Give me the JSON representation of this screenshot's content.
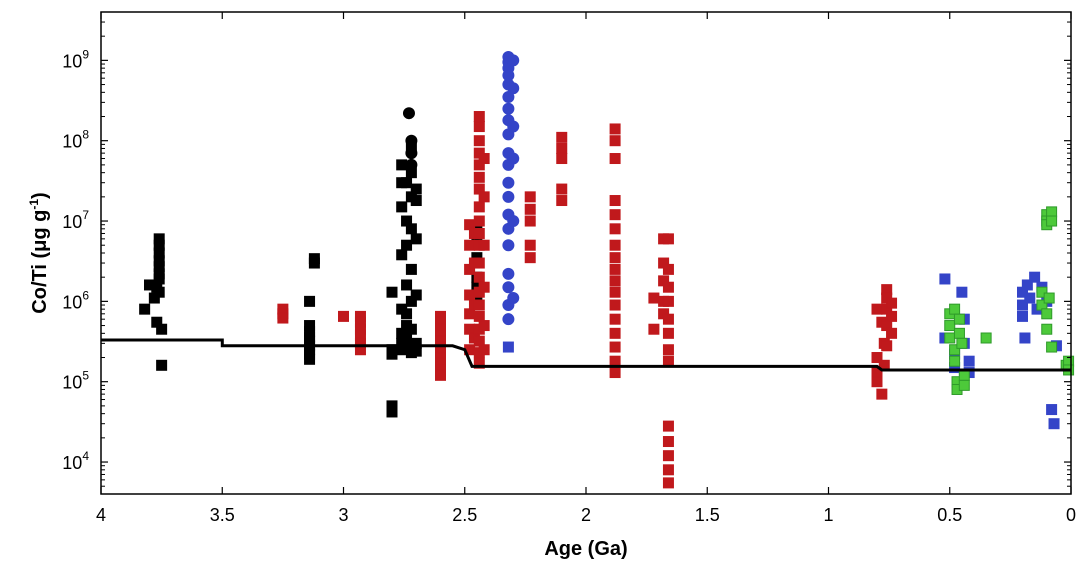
{
  "chart_data": {
    "type": "scatter",
    "xlabel": "Age (Ga)",
    "ylabel_base": "Co/Ti (μg g",
    "ylabel_sup": "-1",
    "ylabel_close": ")",
    "x_reversed": true,
    "xlim": [
      4,
      0
    ],
    "ylim": [
      4000,
      4000000000
    ],
    "y_scale": "log",
    "grid": false,
    "x_ticks": [
      4,
      3.5,
      3,
      2.5,
      2,
      1.5,
      1,
      0.5,
      0
    ],
    "x_tick_labels": [
      "4",
      "3.5",
      "3",
      "2.5",
      "2",
      "1.5",
      "1",
      "0.5",
      "0"
    ],
    "y_ticks": [
      10000,
      100000,
      1000000,
      10000000,
      100000000,
      1000000000
    ],
    "y_tick_base": "10",
    "y_tick_exponents": [
      "4",
      "5",
      "6",
      "7",
      "8",
      "9"
    ],
    "colors": {
      "black": "#000000",
      "red": "#c0191c",
      "blue": "#3444c8",
      "green": "#4dc93a",
      "green_edge": "#2f9a2a"
    },
    "series": [
      {
        "color": "black",
        "marker": "square",
        "points": [
          [
            3.8,
            1600000
          ],
          [
            3.82,
            800000
          ],
          [
            3.78,
            1100000
          ],
          [
            3.76,
            6000000
          ],
          [
            3.76,
            5000000
          ],
          [
            3.76,
            4000000
          ],
          [
            3.76,
            3200000
          ],
          [
            3.76,
            2700000
          ],
          [
            3.76,
            2200000
          ],
          [
            3.76,
            1900000
          ],
          [
            3.77,
            1500000
          ],
          [
            3.76,
            1300000
          ],
          [
            3.77,
            550000
          ],
          [
            3.75,
            450000
          ],
          [
            3.75,
            160000
          ],
          [
            3.14,
            1000000
          ],
          [
            3.14,
            500000
          ],
          [
            3.14,
            420000
          ],
          [
            3.14,
            360000
          ],
          [
            3.14,
            320000
          ],
          [
            3.14,
            280000
          ],
          [
            3.14,
            250000
          ],
          [
            3.14,
            220000
          ],
          [
            3.14,
            190000
          ],
          [
            3.12,
            3400000
          ],
          [
            3.12,
            3000000
          ],
          [
            2.8,
            1300000
          ],
          [
            2.8,
            250000
          ],
          [
            2.8,
            220000
          ],
          [
            2.8,
            50000
          ],
          [
            2.8,
            42000
          ],
          [
            2.76,
            50000000
          ],
          [
            2.76,
            30000000
          ],
          [
            2.76,
            15000000
          ],
          [
            2.76,
            3800000
          ],
          [
            2.76,
            800000
          ],
          [
            2.76,
            400000
          ],
          [
            2.76,
            300000
          ],
          [
            2.76,
            250000
          ],
          [
            2.74,
            30000000
          ],
          [
            2.74,
            10000000
          ],
          [
            2.74,
            5000000
          ],
          [
            2.74,
            1600000
          ],
          [
            2.74,
            700000
          ],
          [
            2.74,
            500000
          ],
          [
            2.74,
            350000
          ],
          [
            2.72,
            80000000
          ],
          [
            2.72,
            40000000
          ],
          [
            2.72,
            20000000
          ],
          [
            2.72,
            8000000
          ],
          [
            2.72,
            2500000
          ],
          [
            2.72,
            1000000
          ],
          [
            2.72,
            450000
          ],
          [
            2.72,
            260000
          ],
          [
            2.72,
            230000
          ],
          [
            2.7,
            25000000
          ],
          [
            2.7,
            6000000
          ],
          [
            2.7,
            1200000
          ],
          [
            2.7,
            300000
          ],
          [
            2.7,
            240000
          ],
          [
            2.7,
            18000000
          ],
          [
            2.45,
            7500000
          ],
          [
            2.45,
            6500000
          ],
          [
            2.45,
            3500000
          ],
          [
            2.45,
            2000000
          ],
          [
            2.45,
            1500000
          ],
          [
            2.45,
            1000000
          ]
        ]
      },
      {
        "color": "black",
        "marker": "circle",
        "points": [
          [
            2.73,
            220000000
          ],
          [
            2.72,
            100000000
          ],
          [
            2.72,
            70000000
          ],
          [
            2.72,
            50000000
          ]
        ]
      },
      {
        "color": "red",
        "marker": "square",
        "points": [
          [
            3.25,
            800000
          ],
          [
            3.25,
            700000
          ],
          [
            3.25,
            620000
          ],
          [
            3.0,
            650000
          ],
          [
            2.93,
            650000
          ],
          [
            2.93,
            550000
          ],
          [
            2.93,
            450000
          ],
          [
            2.93,
            380000
          ],
          [
            2.93,
            300000
          ],
          [
            2.93,
            250000
          ],
          [
            2.6,
            650000
          ],
          [
            2.6,
            550000
          ],
          [
            2.6,
            450000
          ],
          [
            2.6,
            380000
          ],
          [
            2.6,
            320000
          ],
          [
            2.6,
            270000
          ],
          [
            2.6,
            230000
          ],
          [
            2.6,
            200000
          ],
          [
            2.6,
            170000
          ],
          [
            2.6,
            140000
          ],
          [
            2.6,
            120000
          ],
          [
            2.48,
            9000000
          ],
          [
            2.48,
            5000000
          ],
          [
            2.48,
            2500000
          ],
          [
            2.48,
            1200000
          ],
          [
            2.48,
            700000
          ],
          [
            2.48,
            450000
          ],
          [
            2.48,
            250000
          ],
          [
            2.46,
            7000000
          ],
          [
            2.46,
            3000000
          ],
          [
            2.46,
            900000
          ],
          [
            2.46,
            350000
          ],
          [
            2.44,
            200000000
          ],
          [
            2.44,
            150000000
          ],
          [
            2.44,
            100000000
          ],
          [
            2.44,
            70000000
          ],
          [
            2.44,
            50000000
          ],
          [
            2.44,
            35000000
          ],
          [
            2.44,
            25000000
          ],
          [
            2.44,
            15000000
          ],
          [
            2.44,
            10000000
          ],
          [
            2.44,
            7000000
          ],
          [
            2.44,
            5000000
          ],
          [
            2.44,
            3000000
          ],
          [
            2.44,
            2000000
          ],
          [
            2.44,
            1300000
          ],
          [
            2.44,
            900000
          ],
          [
            2.44,
            650000
          ],
          [
            2.44,
            450000
          ],
          [
            2.44,
            320000
          ],
          [
            2.44,
            230000
          ],
          [
            2.44,
            170000
          ],
          [
            2.42,
            60000000
          ],
          [
            2.42,
            20000000
          ],
          [
            2.42,
            5000000
          ],
          [
            2.42,
            1500000
          ],
          [
            2.42,
            500000
          ],
          [
            2.42,
            250000
          ],
          [
            2.23,
            20000000
          ],
          [
            2.23,
            14000000
          ],
          [
            2.23,
            10000000
          ],
          [
            2.23,
            5000000
          ],
          [
            2.23,
            3500000
          ],
          [
            2.1,
            110000000
          ],
          [
            2.1,
            80000000
          ],
          [
            2.1,
            60000000
          ],
          [
            2.1,
            25000000
          ],
          [
            2.1,
            18000000
          ],
          [
            1.88,
            140000000
          ],
          [
            1.88,
            100000000
          ],
          [
            1.88,
            60000000
          ],
          [
            1.88,
            18000000
          ],
          [
            1.88,
            12000000
          ],
          [
            1.88,
            8000000
          ],
          [
            1.88,
            5000000
          ],
          [
            1.88,
            3500000
          ],
          [
            1.88,
            2500000
          ],
          [
            1.88,
            1800000
          ],
          [
            1.88,
            1300000
          ],
          [
            1.88,
            900000
          ],
          [
            1.88,
            600000
          ],
          [
            1.88,
            400000
          ],
          [
            1.88,
            270000
          ],
          [
            1.88,
            180000
          ],
          [
            1.88,
            130000
          ],
          [
            1.72,
            1100000
          ],
          [
            1.72,
            450000
          ],
          [
            1.68,
            6000000
          ],
          [
            1.68,
            3000000
          ],
          [
            1.68,
            1800000
          ],
          [
            1.68,
            1000000
          ],
          [
            1.68,
            700000
          ],
          [
            1.66,
            6000000
          ],
          [
            1.66,
            2500000
          ],
          [
            1.66,
            1500000
          ],
          [
            1.66,
            1000000
          ],
          [
            1.66,
            600000
          ],
          [
            1.66,
            400000
          ],
          [
            1.66,
            250000
          ],
          [
            1.66,
            180000
          ],
          [
            1.66,
            28000
          ],
          [
            1.66,
            18000
          ],
          [
            1.66,
            12000
          ],
          [
            1.66,
            8000
          ],
          [
            1.66,
            5500
          ],
          [
            0.8,
            800000
          ],
          [
            0.8,
            200000
          ],
          [
            0.8,
            130000
          ],
          [
            0.8,
            100000
          ],
          [
            0.78,
            550000
          ],
          [
            0.78,
            70000
          ],
          [
            0.77,
            300000
          ],
          [
            0.77,
            160000
          ],
          [
            0.76,
            1400000
          ],
          [
            0.76,
            1100000
          ],
          [
            0.76,
            800000
          ],
          [
            0.76,
            500000
          ],
          [
            0.76,
            280000
          ],
          [
            0.74,
            950000
          ],
          [
            0.74,
            650000
          ],
          [
            0.74,
            400000
          ]
        ]
      },
      {
        "color": "blue",
        "marker": "circle",
        "points": [
          [
            2.32,
            1100000000
          ],
          [
            2.32,
            950000000
          ],
          [
            2.32,
            800000000
          ],
          [
            2.32,
            650000000
          ],
          [
            2.32,
            500000000
          ],
          [
            2.32,
            350000000
          ],
          [
            2.32,
            250000000
          ],
          [
            2.32,
            180000000
          ],
          [
            2.32,
            120000000
          ],
          [
            2.32,
            70000000
          ],
          [
            2.32,
            50000000
          ],
          [
            2.32,
            30000000
          ],
          [
            2.32,
            20000000
          ],
          [
            2.32,
            12000000
          ],
          [
            2.32,
            8000000
          ],
          [
            2.32,
            5000000
          ],
          [
            2.32,
            2200000
          ],
          [
            2.32,
            1500000
          ],
          [
            2.32,
            900000
          ],
          [
            2.32,
            600000
          ],
          [
            2.3,
            1000000000
          ],
          [
            2.3,
            450000000
          ],
          [
            2.3,
            150000000
          ],
          [
            2.3,
            60000000
          ],
          [
            2.3,
            10000000
          ],
          [
            2.3,
            1100000
          ]
        ]
      },
      {
        "color": "blue",
        "marker": "square",
        "points": [
          [
            2.32,
            270000
          ],
          [
            0.52,
            1900000
          ],
          [
            0.52,
            350000
          ],
          [
            0.48,
            220000
          ],
          [
            0.48,
            150000
          ],
          [
            0.45,
            1300000
          ],
          [
            0.44,
            600000
          ],
          [
            0.44,
            300000
          ],
          [
            0.42,
            180000
          ],
          [
            0.42,
            130000
          ],
          [
            0.2,
            1300000
          ],
          [
            0.2,
            900000
          ],
          [
            0.2,
            650000
          ],
          [
            0.19,
            350000
          ],
          [
            0.18,
            1600000
          ],
          [
            0.17,
            1100000
          ],
          [
            0.15,
            2000000
          ],
          [
            0.14,
            800000
          ],
          [
            0.12,
            1500000
          ],
          [
            0.1,
            1000000
          ],
          [
            0.08,
            45000
          ],
          [
            0.07,
            30000
          ],
          [
            0.06,
            280000
          ]
        ]
      },
      {
        "color": "green",
        "marker": "square",
        "points": [
          [
            0.5,
            700000
          ],
          [
            0.5,
            500000
          ],
          [
            0.5,
            350000
          ],
          [
            0.48,
            800000
          ],
          [
            0.48,
            250000
          ],
          [
            0.48,
            180000
          ],
          [
            0.47,
            100000
          ],
          [
            0.47,
            80000
          ],
          [
            0.46,
            400000
          ],
          [
            0.46,
            600000
          ],
          [
            0.45,
            300000
          ],
          [
            0.44,
            120000
          ],
          [
            0.44,
            90000
          ],
          [
            0.35,
            350000
          ],
          [
            0.12,
            1300000
          ],
          [
            0.12,
            900000
          ],
          [
            0.1,
            12000000
          ],
          [
            0.1,
            10000000
          ],
          [
            0.1,
            9000000
          ],
          [
            0.1,
            700000
          ],
          [
            0.1,
            450000
          ],
          [
            0.09,
            1100000
          ],
          [
            0.08,
            13000000
          ],
          [
            0.08,
            10000000
          ],
          [
            0.08,
            270000
          ],
          [
            0.02,
            160000
          ],
          [
            0.01,
            180000
          ],
          [
            0.01,
            140000
          ]
        ]
      }
    ],
    "step_line": {
      "color": "black",
      "points": [
        [
          4.0,
          330000
        ],
        [
          3.5,
          330000
        ],
        [
          3.5,
          280000
        ],
        [
          2.55,
          280000
        ],
        [
          2.5,
          250000
        ],
        [
          2.47,
          155000
        ],
        [
          0.8,
          155000
        ],
        [
          0.78,
          140000
        ],
        [
          0,
          140000
        ]
      ]
    }
  }
}
